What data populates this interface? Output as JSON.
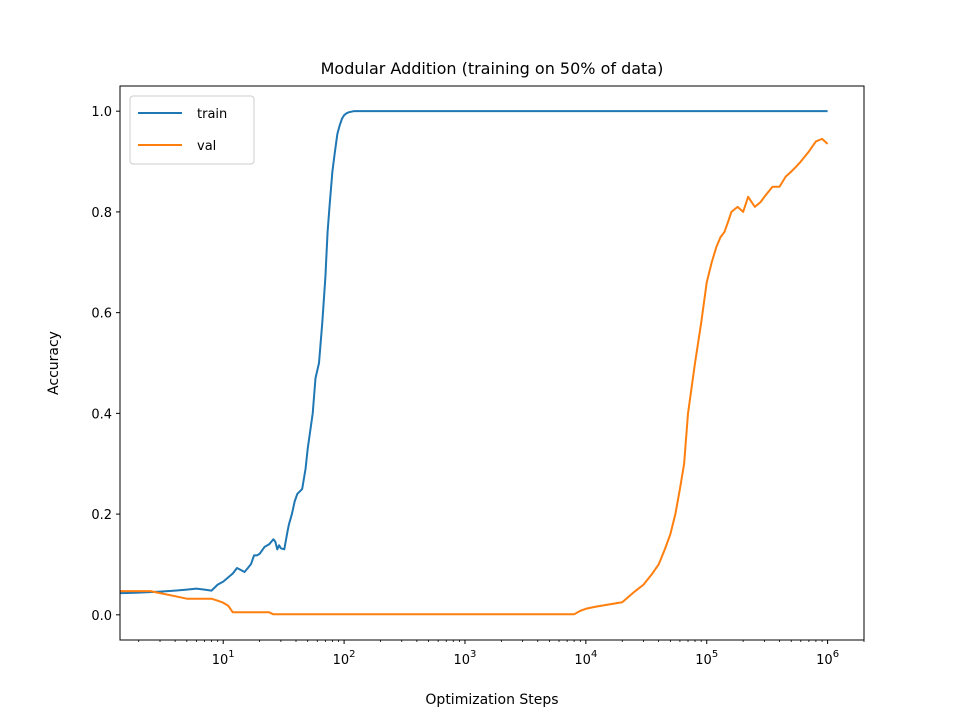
{
  "chart_data": {
    "type": "line",
    "title": "Modular Addition (training on 50% of data)",
    "xlabel": "Optimization Steps",
    "ylabel": "Accuracy",
    "xscale": "log",
    "xlim": [
      1.4,
      2000000
    ],
    "ylim": [
      -0.05,
      1.05
    ],
    "x_ticks": [
      {
        "value": 10,
        "base": "10",
        "exp": "1"
      },
      {
        "value": 100,
        "base": "10",
        "exp": "2"
      },
      {
        "value": 1000,
        "base": "10",
        "exp": "3"
      },
      {
        "value": 10000,
        "base": "10",
        "exp": "4"
      },
      {
        "value": 100000,
        "base": "10",
        "exp": "5"
      },
      {
        "value": 1000000,
        "base": "10",
        "exp": "6"
      }
    ],
    "y_ticks": [
      {
        "value": 0.0,
        "label": "0.0"
      },
      {
        "value": 0.2,
        "label": "0.2"
      },
      {
        "value": 0.4,
        "label": "0.4"
      },
      {
        "value": 0.6,
        "label": "0.6"
      },
      {
        "value": 0.8,
        "label": "0.8"
      },
      {
        "value": 1.0,
        "label": "1.0"
      }
    ],
    "grid": false,
    "legend_position": "upper-left",
    "series": [
      {
        "name": "train",
        "color": "#1f77b4",
        "x": [
          1.4,
          2,
          3,
          4,
          5,
          6,
          7,
          8,
          9,
          10,
          12,
          13,
          14,
          15,
          16,
          17,
          18,
          19,
          20,
          22,
          24,
          26,
          27,
          28,
          29,
          30,
          32,
          34,
          35,
          37,
          39,
          41,
          43,
          45,
          48,
          50,
          55,
          58,
          62,
          66,
          70,
          73,
          76,
          80,
          84,
          88,
          92,
          96,
          100,
          105,
          110,
          115,
          120,
          130,
          140,
          160,
          200,
          300,
          1000000
        ],
        "y": [
          0.043,
          0.044,
          0.046,
          0.048,
          0.05,
          0.052,
          0.05,
          0.048,
          0.06,
          0.066,
          0.082,
          0.093,
          0.089,
          0.085,
          0.093,
          0.101,
          0.118,
          0.118,
          0.121,
          0.135,
          0.14,
          0.15,
          0.145,
          0.13,
          0.138,
          0.132,
          0.13,
          0.165,
          0.18,
          0.2,
          0.225,
          0.24,
          0.245,
          0.25,
          0.29,
          0.33,
          0.4,
          0.47,
          0.5,
          0.58,
          0.67,
          0.76,
          0.815,
          0.88,
          0.92,
          0.955,
          0.972,
          0.985,
          0.992,
          0.996,
          0.998,
          0.999,
          1.0,
          1.0,
          1.0,
          1.0,
          1.0,
          1.0,
          1.0
        ]
      },
      {
        "name": "val",
        "color": "#ff7f0e",
        "x": [
          1.4,
          2,
          2.5,
          3,
          4,
          5,
          6,
          8,
          9,
          10,
          11,
          12,
          14,
          16,
          20,
          24,
          26,
          30,
          50,
          100,
          1000,
          5000,
          8000,
          9000,
          10000,
          12000,
          15000,
          20000,
          25000,
          30000,
          35000,
          40000,
          45000,
          50000,
          55000,
          60000,
          65000,
          70000,
          80000,
          90000,
          100000,
          110000,
          120000,
          130000,
          140000,
          150000,
          160000,
          180000,
          200000,
          220000,
          250000,
          280000,
          300000,
          350000,
          400000,
          450000,
          500000,
          550000,
          600000,
          700000,
          800000,
          900000,
          1000000
        ],
        "y": [
          0.047,
          0.047,
          0.047,
          0.043,
          0.037,
          0.032,
          0.032,
          0.032,
          0.028,
          0.024,
          0.018,
          0.005,
          0.005,
          0.005,
          0.005,
          0.005,
          0.001,
          0.001,
          0.001,
          0.001,
          0.001,
          0.001,
          0.001,
          0.008,
          0.012,
          0.016,
          0.02,
          0.025,
          0.045,
          0.06,
          0.08,
          0.1,
          0.13,
          0.16,
          0.2,
          0.25,
          0.3,
          0.4,
          0.5,
          0.58,
          0.66,
          0.7,
          0.73,
          0.75,
          0.76,
          0.78,
          0.8,
          0.81,
          0.8,
          0.83,
          0.81,
          0.82,
          0.83,
          0.85,
          0.85,
          0.87,
          0.88,
          0.89,
          0.9,
          0.92,
          0.94,
          0.945,
          0.935
        ]
      }
    ]
  }
}
